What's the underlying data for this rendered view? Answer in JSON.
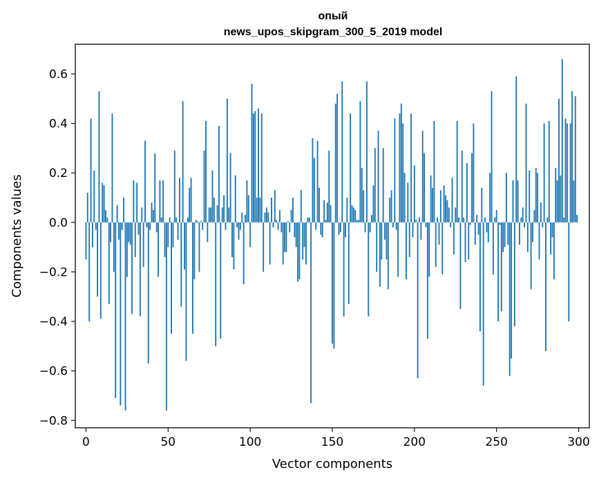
{
  "chart_data": {
    "type": "bar",
    "title": "опый",
    "subtitle": "news_upos_skipgram_300_5_2019 model",
    "xlabel": "Vector components",
    "ylabel": "Components values",
    "xlim": [
      -6.5,
      306.5
    ],
    "ylim": [
      -0.83,
      0.72
    ],
    "xticks": [
      0,
      50,
      100,
      150,
      200,
      250,
      300
    ],
    "xtick_labels": [
      "0",
      "50",
      "100",
      "150",
      "200",
      "250",
      "300"
    ],
    "yticks": [
      0.6,
      0.4,
      0.2,
      0.0,
      -0.2,
      -0.4,
      -0.6,
      -0.8
    ],
    "ytick_labels": [
      "0.6",
      "0.4",
      "0.2",
      "0.0",
      "−0.2",
      "−0.4",
      "−0.6",
      "−0.8"
    ],
    "bar_color": "#1f77b4",
    "values": [
      -0.15,
      0.12,
      -0.4,
      0.42,
      -0.1,
      0.21,
      -0.03,
      -0.3,
      0.53,
      -0.39,
      0.16,
      0.15,
      0.05,
      0.02,
      -0.33,
      -0.08,
      0.44,
      -0.2,
      -0.71,
      0.07,
      -0.07,
      -0.74,
      -0.03,
      0.1,
      -0.76,
      -0.22,
      -0.08,
      -0.09,
      -0.37,
      0.17,
      -0.14,
      0.16,
      -0.05,
      -0.38,
      0.06,
      -0.18,
      0.33,
      -0.02,
      -0.57,
      -0.03,
      0.08,
      0.05,
      0.28,
      -0.04,
      -0.22,
      0.17,
      0.02,
      0.17,
      -0.14,
      -0.76,
      -0.1,
      0.02,
      -0.45,
      -0.1,
      0.29,
      0.02,
      -0.07,
      0.18,
      -0.34,
      0.49,
      -0.19,
      -0.56,
      0.02,
      0.14,
      0.18,
      -0.45,
      -0.23,
      0.01,
      0.005,
      -0.2,
      0.005,
      -0.03,
      0.29,
      0.41,
      -0.08,
      0.06,
      0.06,
      0.21,
      0.1,
      -0.5,
      0.07,
      0.39,
      -0.47,
      0.06,
      0.11,
      -0.03,
      0.5,
      0.06,
      0.28,
      -0.14,
      -0.19,
      0.19,
      -0.02,
      -0.07,
      -0.03,
      0.04,
      -0.25,
      0.03,
      0.17,
      0.11,
      -0.1,
      0.56,
      0.44,
      0.45,
      0.1,
      0.46,
      0.1,
      0.44,
      -0.2,
      0.04,
      0.06,
      0.04,
      -0.17,
      0.1,
      -0.02,
      0.13,
      0.01,
      -0.03,
      0.05,
      -0.04,
      -0.17,
      -0.12,
      -0.12,
      0.005,
      -0.04,
      0.05,
      0.1,
      -0.06,
      -0.1,
      -0.24,
      -0.23,
      0.13,
      -0.15,
      -0.1,
      -0.17,
      0.02,
      0.02,
      -0.73,
      0.34,
      0.26,
      -0.03,
      0.33,
      0.14,
      -0.05,
      -0.06,
      0.09,
      0.01,
      0.08,
      0.29,
      0.07,
      -0.49,
      -0.51,
      0.48,
      0.52,
      -0.05,
      -0.04,
      0.57,
      -0.38,
      -0.06,
      0.1,
      -0.33,
      0.44,
      0.07,
      0.06,
      0.05,
      0.01,
      0.01,
      0.49,
      0.22,
      0.13,
      -0.04,
      0.57,
      -0.38,
      -0.04,
      0.03,
      0.15,
      0.3,
      -0.2,
      0.37,
      -0.26,
      -0.15,
      0.3,
      -0.07,
      -0.15,
      -0.27,
      0.1,
      0.13,
      -0.02,
      0.42,
      -0.03,
      -0.22,
      0.44,
      0.48,
      0.4,
      0.2,
      -0.23,
      0.16,
      -0.14,
      0.44,
      -0.06,
      0.23,
      0.01,
      -0.63,
      0.02,
      -0.07,
      0.37,
      0.28,
      -0.02,
      -0.47,
      -0.22,
      0.19,
      0.14,
      0.41,
      -0.18,
      0.02,
      -0.09,
      0.13,
      -0.21,
      0.15,
      0.11,
      0.09,
      0.06,
      -0.02,
      0.18,
      -0.13,
      0.06,
      0.41,
      0.02,
      -0.35,
      0.29,
      0.02,
      -0.16,
      0.24,
      -0.15,
      -0.01,
      0.28,
      0.4,
      -0.09,
      0.03,
      -0.05,
      -0.44,
      0.14,
      -0.66,
      0.02,
      -0.04,
      -0.08,
      0.2,
      0.53,
      -0.21,
      0.02,
      0.05,
      -0.4,
      -0.01,
      -0.36,
      -0.12,
      -0.1,
      0.2,
      -0.09,
      -0.62,
      -0.55,
      0.17,
      -0.42,
      0.59,
      0.17,
      -0.09,
      0.02,
      0.06,
      -0.02,
      0.48,
      -0.12,
      0.21,
      -0.27,
      -0.08,
      0.05,
      0.22,
      0.2,
      -0.15,
      0.08,
      -0.02,
      0.4,
      -0.52,
      0.02,
      0.41,
      -0.13,
      -0.06,
      -0.23,
      0.22,
      0.17,
      0.5,
      0.19,
      0.66,
      0.02,
      0.42,
      0.4,
      -0.4,
      0.4,
      0.53,
      0.17,
      0.51,
      0.03
    ]
  }
}
